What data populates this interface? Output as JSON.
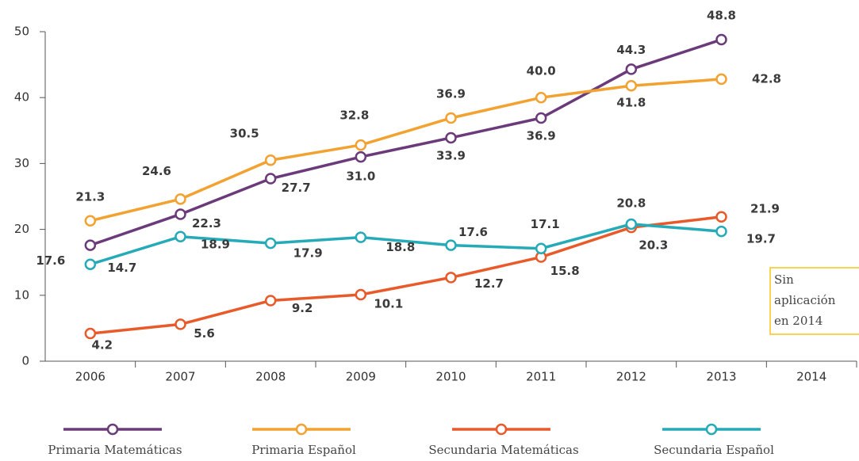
{
  "chart_data": {
    "type": "line",
    "categories": [
      "2006",
      "2007",
      "2008",
      "2009",
      "2010",
      "2011",
      "2012",
      "2013",
      "2014"
    ],
    "ylim": [
      0,
      50
    ],
    "yticks": [
      0,
      10,
      20,
      30,
      40,
      50
    ],
    "series": [
      {
        "name": "Primaria Matemáticas",
        "color": "#6b3a7a",
        "values": [
          17.6,
          22.3,
          27.7,
          31.0,
          33.9,
          36.9,
          44.3,
          48.8,
          null
        ],
        "value_labels": [
          "17.6",
          "22.3",
          "27.7",
          "31.0",
          "33.9",
          "36.9",
          "44.3",
          "48.8",
          null
        ]
      },
      {
        "name": "Primaria Español",
        "color": "#f2a230",
        "values": [
          21.3,
          24.6,
          30.5,
          32.8,
          36.9,
          40.0,
          41.8,
          42.8,
          null
        ],
        "value_labels": [
          "21.3",
          "24.6",
          "30.5",
          "32.8",
          "36.9",
          "40.0",
          "41.8",
          "42.8",
          null
        ]
      },
      {
        "name": "Secundaria Matemáticas",
        "color": "#e85a2a",
        "values": [
          4.2,
          5.6,
          9.2,
          10.1,
          12.7,
          15.8,
          20.3,
          21.9,
          null
        ],
        "value_labels": [
          "4.2",
          "5.6",
          "9.2",
          "10.1",
          "12.7",
          "15.8",
          "20.3",
          "21.9",
          null
        ]
      },
      {
        "name": "Secundaria Español",
        "color": "#25aab8",
        "values": [
          14.7,
          18.9,
          17.9,
          18.8,
          17.6,
          17.1,
          20.8,
          19.7,
          null
        ],
        "value_labels": [
          "14.7",
          "18.9",
          "17.9",
          "18.8",
          "17.6",
          "17.1",
          "20.8",
          "19.7",
          null
        ]
      }
    ],
    "annotation": [
      "Sin",
      "aplicación",
      "en 2014"
    ],
    "annotation_color": "#f5c518"
  }
}
